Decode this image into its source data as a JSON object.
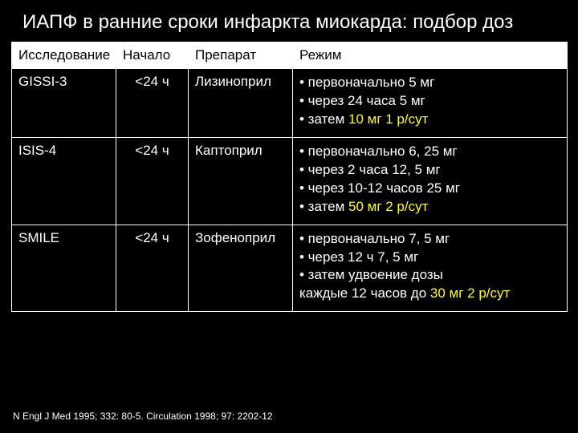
{
  "title": "ИАПФ в ранние сроки инфаркта миокарда: подбор доз",
  "columns": {
    "study": "Исследование",
    "start": "Начало",
    "drug": "Препарат",
    "regimen": "Режим"
  },
  "rows": [
    {
      "study": "GISSI-3",
      "start": "<24 ч",
      "drug": "Лизиноприл",
      "regimen": [
        {
          "pre": "• первоначально 5 мг",
          "hl": ""
        },
        {
          "pre": "• через 24 часа 5 мг",
          "hl": ""
        },
        {
          "pre": "• затем ",
          "hl": "10 мг 1 р/сут"
        }
      ]
    },
    {
      "study": "ISIS-4",
      "start": "<24 ч",
      "drug": "Каптоприл",
      "regimen": [
        {
          "pre": "• первоначально 6, 25 мг",
          "hl": ""
        },
        {
          "pre": "• через 2 часа 12, 5 мг",
          "hl": ""
        },
        {
          "pre": "• через 10-12 часов 25 мг",
          "hl": ""
        },
        {
          "pre": "• затем ",
          "hl": "50 мг 2 р/сут"
        }
      ]
    },
    {
      "study": "SMILE",
      "start": "<24 ч",
      "drug": "Зофеноприл",
      "regimen": [
        {
          "pre": "• первоначально 7, 5 мг",
          "hl": ""
        },
        {
          "pre": "• через 12 ч 7, 5 мг",
          "hl": ""
        },
        {
          "pre": "• затем удвоение дозы",
          "hl": ""
        },
        {
          "pre": "каждые 12 часов до ",
          "hl": "30 мг 2 р/сут"
        }
      ]
    }
  ],
  "footnote": "N Engl J Med 1995; 332: 80-5. Circulation 1998; 97: 2202-12",
  "colors": {
    "background": "#000000",
    "text": "#ffffff",
    "highlight": "#ffff00",
    "header_bg": "#ffffff",
    "header_text": "#000000",
    "border": "#ffffff"
  }
}
